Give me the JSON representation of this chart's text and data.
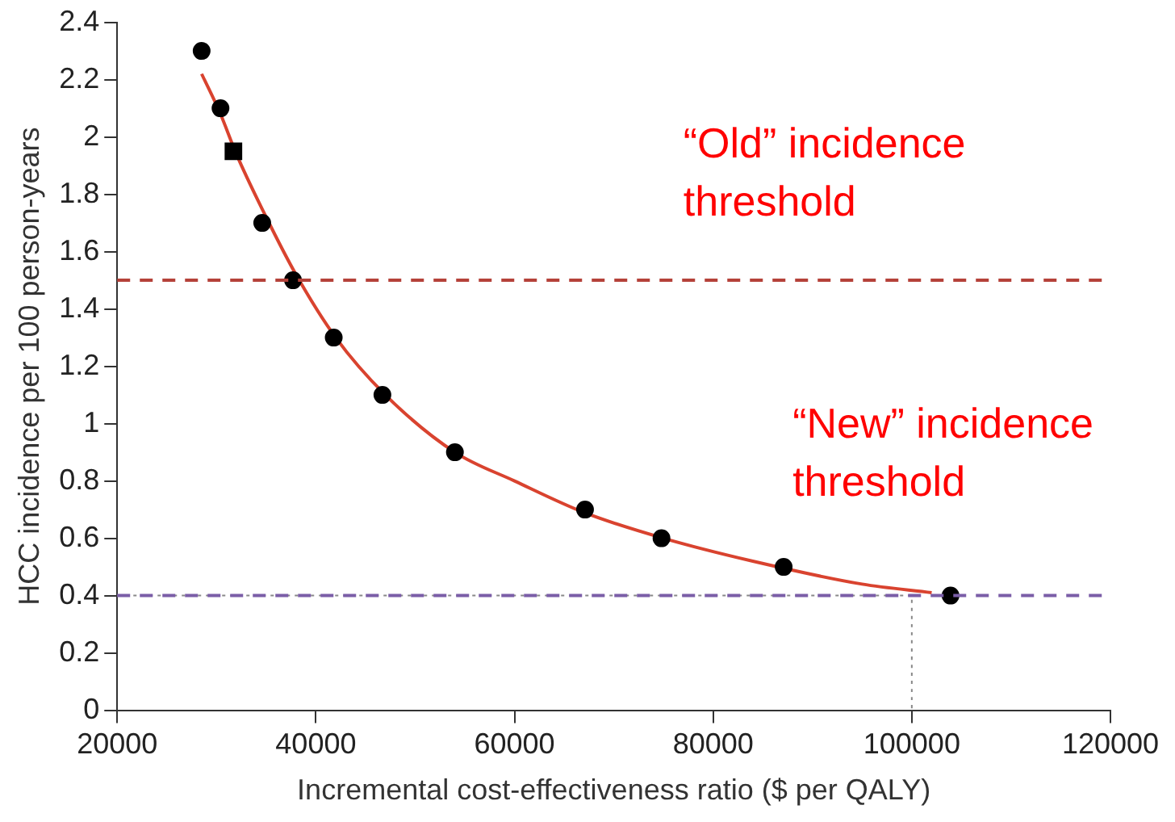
{
  "chart_data": {
    "type": "scatter",
    "xlabel": "Incremental cost-effectiveness ratio ($ per QALY)",
    "ylabel": "HCC incidence per 100 person-years",
    "xlim": [
      20000,
      120000
    ],
    "xticks": [
      20000,
      40000,
      60000,
      80000,
      100000,
      120000
    ],
    "ylim": [
      0,
      2.4
    ],
    "yticks": [
      0,
      0.2,
      0.4,
      0.6,
      0.8,
      1,
      1.2,
      1.4,
      1.6,
      1.8,
      2,
      2.2,
      2.4
    ],
    "grid": false,
    "legend": false,
    "series": [
      {
        "type": "scatter",
        "color": "#000000",
        "marker": "circle",
        "x": [
          28500,
          30400,
          34600,
          37700,
          41800,
          46700,
          54000,
          67100,
          74800,
          87100,
          103900
        ],
        "values": [
          2.3,
          2.1,
          1.7,
          1.5,
          1.3,
          1.1,
          0.9,
          0.7,
          0.6,
          0.5,
          0.4
        ]
      },
      {
        "type": "scatter",
        "color": "#000000",
        "marker": "square",
        "x": [
          31700
        ],
        "values": [
          1.95
        ]
      },
      {
        "type": "line",
        "color": "#d9432f",
        "marker": "none",
        "line_style": "solid",
        "x": [
          28500,
          30400,
          32000,
          35000,
          38000,
          42000,
          47000,
          54000,
          60000,
          67000,
          75000,
          84000,
          95000,
          102000
        ],
        "values": [
          2.22,
          2.08,
          1.94,
          1.72,
          1.52,
          1.3,
          1.1,
          0.9,
          0.8,
          0.69,
          0.6,
          0.52,
          0.44,
          0.41
        ]
      },
      {
        "type": "line",
        "color": "#888888",
        "marker": "none",
        "line_style": "dotted",
        "x": [
          20000,
          100000,
          100000
        ],
        "values": [
          0.4,
          0.4,
          0
        ]
      }
    ],
    "ref_lines": [
      {
        "axis": "y",
        "value": 1.5,
        "label": "“Old” incidence threshold",
        "color": "#b5423a",
        "line_style": "dashed"
      },
      {
        "axis": "y",
        "value": 0.4,
        "label": "“New” incidence threshold",
        "color": "#7b5ea7",
        "line_style": "dashed"
      }
    ]
  }
}
